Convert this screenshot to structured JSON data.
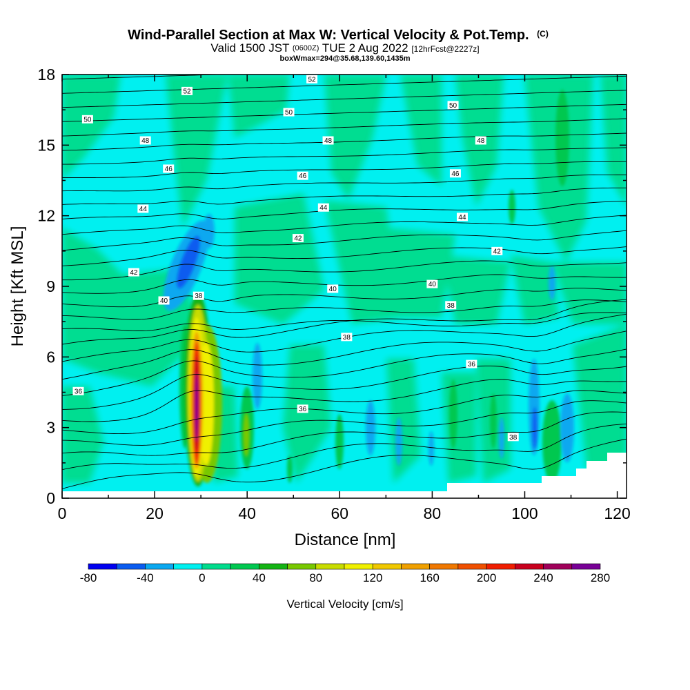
{
  "header": {
    "title_main": "Wind-Parallel Section at Max W: Vertical Velocity & Pot.Temp.",
    "title_copyright": "(C)",
    "valid_prefix": "Valid 1500 JST",
    "valid_utc": "(0600Z)",
    "valid_date": "TUE 2 Aug 2022",
    "valid_fcst": "[12hrFcst@2227z]",
    "box_info": "boxWmax=294@35.68,139.60,1435m"
  },
  "chart_data": {
    "type": "heatmap",
    "xlabel": "Distance [nm]",
    "ylabel": "Height [Kft MSL]",
    "xlim": [
      0,
      122
    ],
    "ylim": [
      0,
      18
    ],
    "x_ticks": [
      "0",
      "20",
      "40",
      "60",
      "80",
      "100",
      "120"
    ],
    "y_ticks": [
      "0",
      "3",
      "6",
      "9",
      "12",
      "15",
      "18"
    ],
    "colorbar": {
      "label": "Vertical Velocity [cm/s]",
      "levels": [
        -80,
        -60,
        -40,
        -20,
        0,
        20,
        40,
        60,
        80,
        100,
        120,
        140,
        160,
        180,
        200,
        220,
        240,
        260,
        280
      ],
      "tick_labels": [
        "-80",
        "-40",
        "0",
        "40",
        "80",
        "120",
        "160",
        "200",
        "240",
        "280"
      ],
      "colors": [
        "#0000f0",
        "#0a5cf0",
        "#0aa8f0",
        "#00f0f0",
        "#00dc8c",
        "#00c850",
        "#14b414",
        "#78c800",
        "#c8dc00",
        "#f0f000",
        "#f0c800",
        "#f0a000",
        "#f07800",
        "#f05000",
        "#f01e00",
        "#c8001e",
        "#a0005a",
        "#780096"
      ]
    },
    "contour_labels": [
      {
        "text": "52",
        "x": 27,
        "y": 17.3
      },
      {
        "text": "52",
        "x": 54,
        "y": 17.8
      },
      {
        "text": "50",
        "x": 5.5,
        "y": 16.1
      },
      {
        "text": "50",
        "x": 49,
        "y": 16.4
      },
      {
        "text": "50",
        "x": 84.5,
        "y": 16.7
      },
      {
        "text": "48",
        "x": 18,
        "y": 15.2
      },
      {
        "text": "48",
        "x": 57.5,
        "y": 15.2
      },
      {
        "text": "48",
        "x": 90.5,
        "y": 15.2
      },
      {
        "text": "46",
        "x": 23,
        "y": 14.0
      },
      {
        "text": "46",
        "x": 52,
        "y": 13.7
      },
      {
        "text": "46",
        "x": 85,
        "y": 13.8
      },
      {
        "text": "44",
        "x": 17.5,
        "y": 12.3
      },
      {
        "text": "44",
        "x": 56.5,
        "y": 12.35
      },
      {
        "text": "44",
        "x": 86.5,
        "y": 11.95
      },
      {
        "text": "42",
        "x": 51,
        "y": 11.05
      },
      {
        "text": "42",
        "x": 15.5,
        "y": 9.6
      },
      {
        "text": "42",
        "x": 94,
        "y": 10.5
      },
      {
        "text": "40",
        "x": 22,
        "y": 8.4
      },
      {
        "text": "40",
        "x": 58.5,
        "y": 8.9
      },
      {
        "text": "40",
        "x": 80,
        "y": 9.1
      },
      {
        "text": "38",
        "x": 29.5,
        "y": 8.6
      },
      {
        "text": "38",
        "x": 61.5,
        "y": 6.85
      },
      {
        "text": "38",
        "x": 84,
        "y": 8.2
      },
      {
        "text": "36",
        "x": 3.5,
        "y": 4.55
      },
      {
        "text": "36",
        "x": 88.5,
        "y": 5.7
      },
      {
        "text": "36",
        "x": 52,
        "y": 3.8
      },
      {
        "text": "38",
        "x": 97.5,
        "y": 2.6
      }
    ]
  }
}
